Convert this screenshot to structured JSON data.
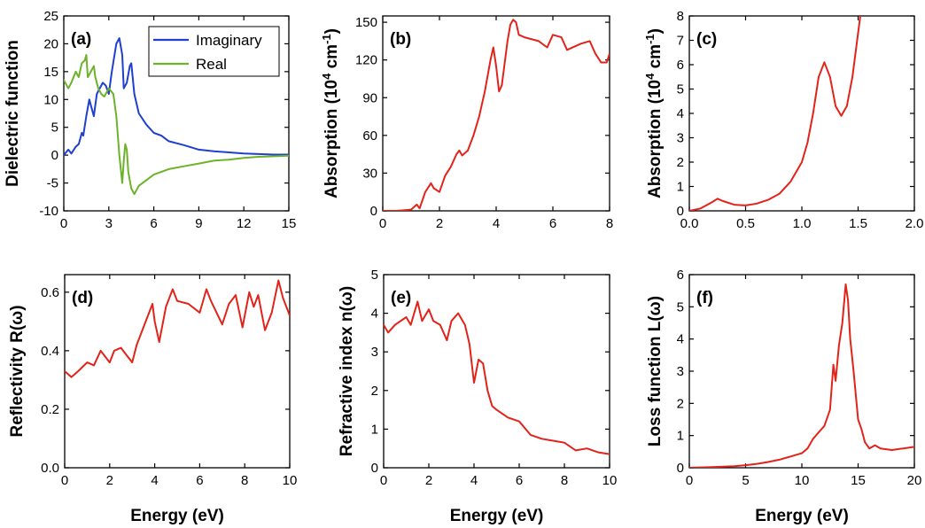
{
  "colors": {
    "blue": "#1f3fcf",
    "green": "#6cb32a",
    "red": "#e2231a"
  },
  "chart_data": [
    {
      "id": "a",
      "type": "line",
      "panel_label": "(a)",
      "ylabel": "Dielectric function",
      "xlabel": "",
      "xlim": [
        0,
        15
      ],
      "ylim": [
        -10,
        25
      ],
      "xticks": [
        0,
        3,
        6,
        9,
        12,
        15
      ],
      "yticks": [
        -10,
        -5,
        0,
        5,
        10,
        15,
        20,
        25
      ],
      "legend_position": "top-right",
      "series": [
        {
          "name": "Imaginary",
          "color": "#1f3fcf",
          "x": [
            0,
            0.3,
            0.5,
            0.8,
            1.0,
            1.2,
            1.3,
            1.5,
            1.7,
            1.8,
            2.0,
            2.2,
            2.4,
            2.6,
            2.8,
            3.0,
            3.2,
            3.5,
            3.7,
            3.9,
            4.0,
            4.2,
            4.4,
            4.5,
            4.7,
            5.0,
            5.5,
            6.0,
            6.5,
            7.0,
            8.0,
            9.0,
            10.0,
            11.0,
            12.0,
            13.0,
            14.0,
            15.0
          ],
          "y": [
            0,
            1.0,
            0.3,
            1.5,
            2.0,
            4.0,
            3.5,
            7.0,
            10.0,
            9.0,
            7.0,
            11.0,
            12.0,
            13.0,
            12.5,
            11.0,
            15.0,
            20.0,
            21.0,
            18.0,
            12.0,
            13.0,
            16.0,
            16.5,
            11.0,
            7.5,
            5.5,
            4.0,
            3.5,
            2.5,
            1.8,
            1.0,
            0.7,
            0.5,
            0.3,
            0.2,
            0.1,
            0.1
          ]
        },
        {
          "name": "Real",
          "color": "#6cb32a",
          "x": [
            0,
            0.3,
            0.5,
            0.8,
            1.0,
            1.2,
            1.4,
            1.5,
            1.6,
            1.8,
            2.0,
            2.1,
            2.3,
            2.5,
            2.7,
            3.0,
            3.3,
            3.5,
            3.7,
            3.9,
            4.0,
            4.1,
            4.2,
            4.3,
            4.5,
            4.7,
            5.0,
            5.5,
            6.0,
            7.0,
            8.0,
            9.0,
            10.0,
            11.0,
            12.0,
            13.0,
            14.0,
            15.0
          ],
          "y": [
            13.5,
            12.0,
            13.0,
            15.0,
            14.0,
            16.5,
            17.0,
            18.0,
            14.0,
            15.0,
            16.0,
            14.0,
            12.0,
            11.0,
            10.5,
            12.0,
            11.0,
            7.0,
            0.0,
            -5.0,
            -1.0,
            2.0,
            1.0,
            -3.0,
            -6.0,
            -7.0,
            -5.5,
            -4.5,
            -3.5,
            -2.5,
            -2.0,
            -1.5,
            -1.0,
            -0.8,
            -0.5,
            -0.3,
            -0.2,
            -0.1
          ]
        }
      ]
    },
    {
      "id": "b",
      "type": "line",
      "panel_label": "(b)",
      "ylabel": "Absorption (10⁴ cm⁻¹)",
      "xlabel": "",
      "xlim": [
        0,
        8
      ],
      "ylim": [
        0,
        155
      ],
      "xticks": [
        0,
        2,
        4,
        6,
        8
      ],
      "yticks": [
        0,
        30,
        60,
        90,
        120,
        150
      ],
      "series": [
        {
          "name": "Absorption",
          "color": "#e2231a",
          "x": [
            0,
            0.5,
            1.0,
            1.2,
            1.3,
            1.5,
            1.7,
            1.8,
            2.0,
            2.2,
            2.4,
            2.6,
            2.7,
            2.8,
            3.0,
            3.2,
            3.4,
            3.6,
            3.8,
            3.9,
            4.0,
            4.1,
            4.2,
            4.4,
            4.5,
            4.6,
            4.7,
            4.8,
            5.0,
            5.5,
            5.8,
            6.0,
            6.3,
            6.5,
            7.0,
            7.3,
            7.5,
            7.7,
            7.9,
            8.0
          ],
          "y": [
            0,
            0,
            1,
            5,
            2,
            15,
            22,
            18,
            15,
            28,
            35,
            45,
            48,
            44,
            48,
            60,
            75,
            95,
            120,
            130,
            115,
            95,
            100,
            135,
            148,
            152,
            150,
            140,
            138,
            135,
            130,
            140,
            138,
            128,
            133,
            135,
            125,
            118,
            118,
            125
          ]
        }
      ]
    },
    {
      "id": "c",
      "type": "line",
      "panel_label": "(c)",
      "ylabel": "Absorption (10⁴ cm⁻¹)",
      "xlabel": "",
      "xlim": [
        0,
        2
      ],
      "ylim": [
        0,
        8
      ],
      "xticks": [
        0.0,
        0.5,
        1.0,
        1.5,
        2.0
      ],
      "yticks": [
        0,
        1,
        2,
        3,
        4,
        5,
        6,
        7,
        8
      ],
      "series": [
        {
          "name": "Absorption",
          "color": "#e2231a",
          "x": [
            0,
            0.1,
            0.2,
            0.25,
            0.3,
            0.4,
            0.5,
            0.6,
            0.7,
            0.8,
            0.9,
            1.0,
            1.05,
            1.1,
            1.15,
            1.2,
            1.25,
            1.3,
            1.35,
            1.4,
            1.45,
            1.5,
            1.52
          ],
          "y": [
            0,
            0.1,
            0.35,
            0.5,
            0.4,
            0.25,
            0.22,
            0.3,
            0.45,
            0.7,
            1.2,
            2.0,
            2.8,
            4.0,
            5.5,
            6.1,
            5.5,
            4.3,
            3.9,
            4.3,
            5.5,
            7.3,
            8.0
          ]
        }
      ]
    },
    {
      "id": "d",
      "type": "line",
      "panel_label": "(d)",
      "ylabel": "Reflectivity R(ω)",
      "xlabel": "Energy (eV)",
      "xlim": [
        0,
        10
      ],
      "ylim": [
        0,
        0.66
      ],
      "xticks": [
        0,
        2,
        4,
        6,
        8,
        10
      ],
      "yticks": [
        0.0,
        0.2,
        0.4,
        0.6
      ],
      "series": [
        {
          "name": "Reflectivity",
          "color": "#e2231a",
          "x": [
            0,
            0.3,
            0.6,
            1.0,
            1.3,
            1.6,
            1.8,
            2.0,
            2.2,
            2.5,
            2.8,
            3.0,
            3.2,
            3.5,
            3.9,
            4.0,
            4.2,
            4.5,
            4.8,
            5.0,
            5.5,
            6.0,
            6.3,
            6.5,
            7.0,
            7.3,
            7.6,
            7.9,
            8.2,
            8.4,
            8.6,
            8.9,
            9.2,
            9.5,
            9.7,
            10.0
          ],
          "y": [
            0.33,
            0.31,
            0.33,
            0.36,
            0.35,
            0.4,
            0.38,
            0.36,
            0.4,
            0.41,
            0.38,
            0.36,
            0.42,
            0.48,
            0.56,
            0.5,
            0.43,
            0.55,
            0.61,
            0.57,
            0.56,
            0.53,
            0.61,
            0.57,
            0.49,
            0.56,
            0.59,
            0.48,
            0.6,
            0.55,
            0.59,
            0.47,
            0.53,
            0.64,
            0.58,
            0.52
          ]
        }
      ]
    },
    {
      "id": "e",
      "type": "line",
      "panel_label": "(e)",
      "ylabel": "Refractive index n(ω)",
      "xlabel": "Energy (eV)",
      "xlim": [
        0,
        10
      ],
      "ylim": [
        0,
        5
      ],
      "xticks": [
        0,
        2,
        4,
        6,
        8,
        10
      ],
      "yticks": [
        0,
        1,
        2,
        3,
        4,
        5
      ],
      "series": [
        {
          "name": "Refractive index",
          "color": "#e2231a",
          "x": [
            0,
            0.2,
            0.5,
            1.0,
            1.2,
            1.5,
            1.7,
            2.0,
            2.2,
            2.5,
            2.8,
            3.0,
            3.3,
            3.6,
            3.8,
            4.0,
            4.2,
            4.4,
            4.6,
            4.8,
            5.0,
            5.5,
            6.0,
            6.5,
            7.0,
            7.5,
            8.0,
            8.5,
            9.0,
            9.5,
            10.0
          ],
          "y": [
            3.7,
            3.5,
            3.7,
            3.9,
            3.7,
            4.3,
            3.8,
            4.1,
            3.8,
            3.7,
            3.3,
            3.8,
            4.0,
            3.7,
            3.2,
            2.2,
            2.8,
            2.7,
            2.0,
            1.6,
            1.5,
            1.3,
            1.2,
            0.85,
            0.75,
            0.7,
            0.65,
            0.45,
            0.5,
            0.4,
            0.35
          ]
        }
      ]
    },
    {
      "id": "f",
      "type": "line",
      "panel_label": "(f)",
      "ylabel": "Loss function L(ω)",
      "xlabel": "Energy (eV)",
      "xlim": [
        0,
        20
      ],
      "ylim": [
        0,
        6
      ],
      "xticks": [
        0,
        5,
        10,
        15,
        20
      ],
      "yticks": [
        0,
        1,
        2,
        3,
        4,
        5,
        6
      ],
      "series": [
        {
          "name": "Loss function",
          "color": "#e2231a",
          "x": [
            0,
            2,
            4,
            5,
            6,
            7,
            8,
            9,
            10,
            10.5,
            11,
            11.5,
            12,
            12.5,
            12.8,
            13.0,
            13.3,
            13.6,
            13.9,
            14.1,
            14.3,
            14.6,
            15.0,
            15.3,
            15.6,
            16.0,
            16.5,
            17.0,
            18.0,
            19.0,
            20.0
          ],
          "y": [
            0,
            0.02,
            0.05,
            0.08,
            0.12,
            0.18,
            0.25,
            0.35,
            0.45,
            0.6,
            0.9,
            1.1,
            1.3,
            1.8,
            3.2,
            2.7,
            3.8,
            4.5,
            5.7,
            5.2,
            4.0,
            3.0,
            1.5,
            1.2,
            0.8,
            0.6,
            0.7,
            0.6,
            0.55,
            0.6,
            0.65
          ]
        }
      ]
    }
  ]
}
